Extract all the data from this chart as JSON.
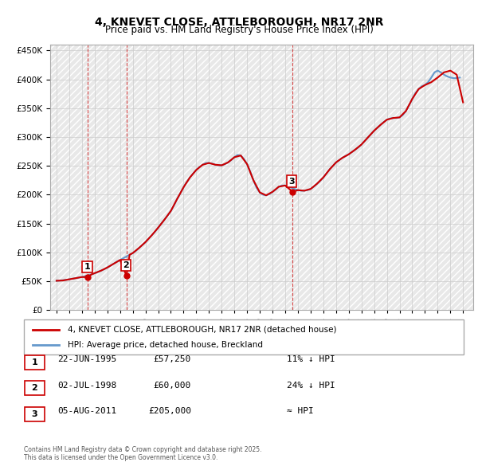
{
  "title": "4, KNEVET CLOSE, ATTLEBOROUGH, NR17 2NR",
  "subtitle": "Price paid vs. HM Land Registry's House Price Index (HPI)",
  "legend_label1": "4, KNEVET CLOSE, ATTLEBOROUGH, NR17 2NR (detached house)",
  "legend_label2": "HPI: Average price, detached house, Breckland",
  "red_color": "#cc0000",
  "blue_color": "#6699cc",
  "sales": [
    {
      "label": "1",
      "date_x": 1995.47,
      "price": 57250
    },
    {
      "label": "2",
      "date_x": 1998.5,
      "price": 60000
    },
    {
      "label": "3",
      "date_x": 2011.59,
      "price": 205000
    }
  ],
  "table_rows": [
    {
      "num": "1",
      "date": "22-JUN-1995",
      "price": "£57,250",
      "hpi": "11% ↓ HPI"
    },
    {
      "num": "2",
      "date": "02-JUL-1998",
      "price": "£60,000",
      "hpi": "24% ↓ HPI"
    },
    {
      "num": "3",
      "date": "05-AUG-2011",
      "price": "£205,000",
      "hpi": "≈ HPI"
    }
  ],
  "footer": "Contains HM Land Registry data © Crown copyright and database right 2025.\nThis data is licensed under the Open Government Licence v3.0.",
  "ylim": [
    0,
    460000
  ],
  "yticks": [
    0,
    50000,
    100000,
    150000,
    200000,
    250000,
    300000,
    350000,
    400000,
    450000
  ],
  "xlim": [
    1992.5,
    2025.8
  ],
  "xticks": [
    1993,
    1994,
    1995,
    1996,
    1997,
    1998,
    1999,
    2000,
    2001,
    2002,
    2003,
    2004,
    2005,
    2006,
    2007,
    2008,
    2009,
    2010,
    2011,
    2012,
    2013,
    2014,
    2015,
    2016,
    2017,
    2018,
    2019,
    2020,
    2021,
    2022,
    2023,
    2024,
    2025
  ],
  "hpi_x": [
    1993.0,
    1993.25,
    1993.5,
    1993.75,
    1994.0,
    1994.25,
    1994.5,
    1994.75,
    1995.0,
    1995.25,
    1995.5,
    1995.75,
    1996.0,
    1996.25,
    1996.5,
    1996.75,
    1997.0,
    1997.25,
    1997.5,
    1997.75,
    1998.0,
    1998.25,
    1998.5,
    1998.75,
    1999.0,
    1999.25,
    1999.5,
    1999.75,
    2000.0,
    2000.25,
    2000.5,
    2000.75,
    2001.0,
    2001.25,
    2001.5,
    2001.75,
    2002.0,
    2002.25,
    2002.5,
    2002.75,
    2003.0,
    2003.25,
    2003.5,
    2003.75,
    2004.0,
    2004.25,
    2004.5,
    2004.75,
    2005.0,
    2005.25,
    2005.5,
    2005.75,
    2006.0,
    2006.25,
    2006.5,
    2006.75,
    2007.0,
    2007.25,
    2007.5,
    2007.75,
    2008.0,
    2008.25,
    2008.5,
    2008.75,
    2009.0,
    2009.25,
    2009.5,
    2009.75,
    2010.0,
    2010.25,
    2010.5,
    2010.75,
    2011.0,
    2011.25,
    2011.5,
    2011.75,
    2012.0,
    2012.25,
    2012.5,
    2012.75,
    2013.0,
    2013.25,
    2013.5,
    2013.75,
    2014.0,
    2014.25,
    2014.5,
    2014.75,
    2015.0,
    2015.25,
    2015.5,
    2015.75,
    2016.0,
    2016.25,
    2016.5,
    2016.75,
    2017.0,
    2017.25,
    2017.5,
    2017.75,
    2018.0,
    2018.25,
    2018.5,
    2018.75,
    2019.0,
    2019.25,
    2019.5,
    2019.75,
    2020.0,
    2020.25,
    2020.5,
    2020.75,
    2021.0,
    2021.25,
    2021.5,
    2021.75,
    2022.0,
    2022.25,
    2022.5,
    2022.75,
    2023.0,
    2023.25,
    2023.5,
    2023.75,
    2024.0,
    2024.25,
    2024.5,
    2024.75
  ],
  "hpi_y": [
    51000,
    51500,
    52000,
    52500,
    53500,
    54500,
    55500,
    56500,
    57500,
    59000,
    60500,
    62000,
    64000,
    66000,
    68500,
    71000,
    74000,
    77000,
    80500,
    84000,
    87000,
    90000,
    93000,
    96000,
    99000,
    103000,
    108000,
    113000,
    118000,
    124000,
    130000,
    136000,
    143000,
    150000,
    157000,
    164000,
    172000,
    182000,
    193000,
    203000,
    213000,
    222000,
    230000,
    237000,
    243000,
    248000,
    252000,
    255000,
    255000,
    254000,
    252000,
    251000,
    251000,
    253000,
    256000,
    260000,
    265000,
    269000,
    268000,
    262000,
    253000,
    240000,
    225000,
    212000,
    204000,
    200000,
    199000,
    201000,
    205000,
    209000,
    214000,
    216000,
    216000,
    214000,
    212000,
    210000,
    208000,
    207000,
    207000,
    208000,
    210000,
    214000,
    219000,
    224000,
    230000,
    237000,
    244000,
    250000,
    256000,
    260000,
    264000,
    267000,
    270000,
    274000,
    278000,
    282000,
    287000,
    293000,
    299000,
    305000,
    311000,
    316000,
    321000,
    326000,
    330000,
    332000,
    333000,
    333000,
    334000,
    338000,
    345000,
    355000,
    366000,
    376000,
    383000,
    388000,
    390000,
    395000,
    403000,
    412000,
    415000,
    412000,
    408000,
    405000,
    403000,
    402000,
    402000,
    403000
  ],
  "price_line_x": [
    1993.0,
    1993.5,
    1994.0,
    1994.5,
    1995.0,
    1995.47,
    1995.75,
    1996.5,
    1997.0,
    1997.5,
    1998.0,
    1998.5,
    1998.75,
    1999.0,
    1999.5,
    2000.0,
    2000.5,
    2001.0,
    2001.5,
    2002.0,
    2002.5,
    2003.0,
    2003.5,
    2004.0,
    2004.5,
    2005.0,
    2005.5,
    2006.0,
    2006.5,
    2007.0,
    2007.5,
    2008.0,
    2008.5,
    2009.0,
    2009.5,
    2010.0,
    2010.5,
    2011.0,
    2011.59,
    2012.0,
    2012.5,
    2013.0,
    2013.5,
    2014.0,
    2014.5,
    2015.0,
    2015.5,
    2016.0,
    2016.5,
    2017.0,
    2017.5,
    2018.0,
    2018.5,
    2019.0,
    2019.5,
    2020.0,
    2020.5,
    2021.0,
    2021.5,
    2022.0,
    2022.5,
    2023.0,
    2023.5,
    2024.0,
    2024.5,
    2025.0
  ],
  "price_line_y": [
    51000,
    51500,
    53500,
    55500,
    57500,
    57250,
    62000,
    68500,
    74000,
    80500,
    87000,
    60000,
    96000,
    99000,
    108000,
    118000,
    130000,
    143000,
    157000,
    172000,
    193000,
    213000,
    230000,
    243000,
    252000,
    255000,
    252000,
    251000,
    256000,
    265000,
    268000,
    253000,
    225000,
    204000,
    199000,
    205000,
    214000,
    216000,
    205000,
    208000,
    207000,
    210000,
    219000,
    230000,
    244000,
    256000,
    264000,
    270000,
    278000,
    287000,
    299000,
    311000,
    321000,
    330000,
    333000,
    334000,
    345000,
    366000,
    383000,
    390000,
    395000,
    403000,
    412000,
    415000,
    408000,
    360000
  ]
}
